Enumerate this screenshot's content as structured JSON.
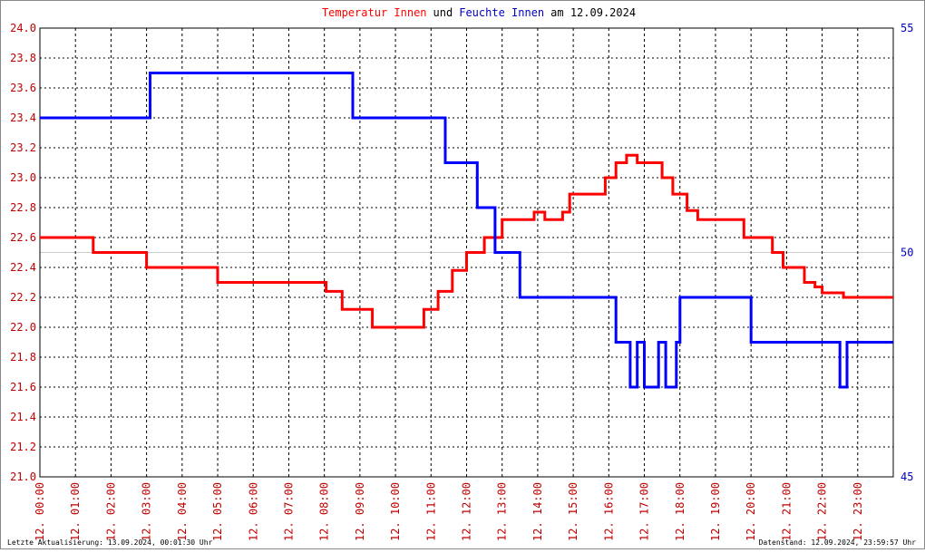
{
  "chart_data": {
    "type": "line",
    "title_parts": [
      {
        "text": "Temperatur Innen",
        "color": "#ff0000"
      },
      {
        "text": "und",
        "color": "#000000"
      },
      {
        "text": "Feuchte Innen",
        "color": "#0000c0"
      },
      {
        "text": "am 12.09.2024",
        "color": "#000000"
      }
    ],
    "footer_left": "Letzte Aktualisierung: 13.09.2024, 00:01:30 Uhr",
    "footer_right": "Datenstand: 12.09.2024, 23:59:57 Uhr",
    "xlim": [
      0,
      24
    ],
    "xticks": [
      {
        "value": 0,
        "label": "12. 00:00"
      },
      {
        "value": 1,
        "label": "12. 01:00"
      },
      {
        "value": 2,
        "label": "12. 02:00"
      },
      {
        "value": 3,
        "label": "12. 03:00"
      },
      {
        "value": 4,
        "label": "12. 04:00"
      },
      {
        "value": 5,
        "label": "12. 05:00"
      },
      {
        "value": 6,
        "label": "12. 06:00"
      },
      {
        "value": 7,
        "label": "12. 07:00"
      },
      {
        "value": 8,
        "label": "12. 08:00"
      },
      {
        "value": 9,
        "label": "12. 09:00"
      },
      {
        "value": 10,
        "label": "12. 10:00"
      },
      {
        "value": 11,
        "label": "12. 11:00"
      },
      {
        "value": 12,
        "label": "12. 12:00"
      },
      {
        "value": 13,
        "label": "12. 13:00"
      },
      {
        "value": 14,
        "label": "12. 14:00"
      },
      {
        "value": 15,
        "label": "12. 15:00"
      },
      {
        "value": 16,
        "label": "12. 16:00"
      },
      {
        "value": 17,
        "label": "12. 17:00"
      },
      {
        "value": 18,
        "label": "12. 18:00"
      },
      {
        "value": 19,
        "label": "12. 19:00"
      },
      {
        "value": 20,
        "label": "12. 20:00"
      },
      {
        "value": 21,
        "label": "12. 21:00"
      },
      {
        "value": 22,
        "label": "12. 22:00"
      },
      {
        "value": 23,
        "label": "12. 23:00"
      }
    ],
    "ylim": [
      21,
      24
    ],
    "yticks": [
      {
        "value": 21,
        "label": "21.0"
      },
      21.2,
      21.4,
      21.6,
      21.8,
      {
        "value": 22,
        "label": "22.0"
      },
      22.2,
      22.4,
      22.6,
      22.8,
      {
        "value": 23,
        "label": "23.0"
      },
      23.2,
      23.4,
      23.6,
      23.8,
      {
        "value": 24,
        "label": "24.0"
      }
    ],
    "y2lim": [
      45,
      55
    ],
    "y2ticks": [
      45,
      50,
      55
    ],
    "grid": true,
    "series": [
      {
        "name": "Temperatur Innen",
        "color": "#ff0000",
        "x": [
          0,
          1.5,
          1.5,
          3.0,
          3.0,
          5.0,
          5.0,
          8.05,
          8.05,
          8.5,
          8.5,
          9.35,
          9.35,
          10.8,
          10.8,
          11.2,
          11.2,
          11.6,
          11.6,
          12.0,
          12.0,
          12.5,
          12.5,
          13.0,
          13.0,
          13.9,
          13.9,
          14.2,
          14.2,
          14.7,
          14.7,
          14.9,
          14.9,
          15.9,
          15.9,
          16.2,
          16.2,
          16.5,
          16.5,
          16.8,
          16.8,
          17.5,
          17.5,
          17.8,
          17.8,
          18.2,
          18.2,
          18.5,
          18.5,
          19.8,
          19.8,
          20.6,
          20.6,
          20.9,
          20.9,
          21.5,
          21.5,
          21.8,
          21.8,
          22.0,
          22.0,
          22.6,
          22.6,
          24
        ],
        "values": [
          22.6,
          22.6,
          22.5,
          22.5,
          22.4,
          22.4,
          22.3,
          22.3,
          22.24,
          22.24,
          22.12,
          22.12,
          22.0,
          22.0,
          22.12,
          22.12,
          22.24,
          22.24,
          22.38,
          22.38,
          22.5,
          22.5,
          22.6,
          22.6,
          22.72,
          22.72,
          22.77,
          22.77,
          22.72,
          22.72,
          22.77,
          22.77,
          22.89,
          22.89,
          23.0,
          23.0,
          23.1,
          23.1,
          23.15,
          23.15,
          23.1,
          23.1,
          23.0,
          23.0,
          22.89,
          22.89,
          22.78,
          22.78,
          22.72,
          22.72,
          22.6,
          22.6,
          22.5,
          22.5,
          22.4,
          22.4,
          22.3,
          22.3,
          22.27,
          22.27,
          22.23,
          22.23,
          22.2,
          22.2
        ]
      },
      {
        "name": "Feuchte Innen",
        "color": "#0000ff",
        "axis": "y2",
        "x": [
          0,
          3.1,
          3.1,
          8.8,
          8.8,
          11.4,
          11.4,
          12.3,
          12.3,
          12.8,
          12.8,
          13.5,
          13.5,
          16.2,
          16.2,
          16.6,
          16.6,
          16.8,
          16.8,
          17.0,
          17.0,
          17.4,
          17.4,
          17.6,
          17.6,
          17.9,
          17.9,
          18.0,
          18.0,
          20.0,
          20.0,
          22.5,
          22.5,
          22.7,
          22.7,
          24
        ],
        "values": [
          53,
          53,
          54,
          54,
          53,
          53,
          52,
          52,
          51,
          51,
          50,
          50,
          49,
          49,
          48,
          48,
          47,
          47,
          48,
          48,
          47,
          47,
          48,
          48,
          47,
          47,
          48,
          48,
          49,
          49,
          48,
          48,
          47,
          47,
          48,
          48
        ]
      }
    ]
  }
}
